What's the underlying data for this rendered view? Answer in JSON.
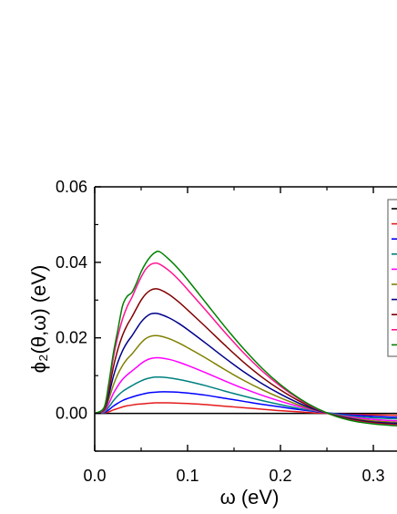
{
  "chart_data": {
    "type": "line",
    "title": "",
    "xlabel": "ω (eV)",
    "ylabel": "ϕ₂(θ,ω) (eV)",
    "xlim": [
      0.0,
      0.3333
    ],
    "ylim": [
      -0.01,
      0.06
    ],
    "xticks": [
      0.0,
      0.1,
      0.2,
      0.3
    ],
    "xtick_labels": [
      "0.0",
      "0.1",
      "0.2",
      "0.3"
    ],
    "yticks": [
      0.0,
      0.02,
      0.04,
      0.06
    ],
    "ytick_labels": [
      "0.00",
      "0.02",
      "0.04",
      "0.06"
    ],
    "grid": false,
    "legend": {
      "placement": "top-right",
      "clipped": true,
      "entry_colors": [
        "#000000",
        "#e41a1c",
        "#0000ff",
        "#008080",
        "#ff00ff",
        "#808000",
        "#00008b",
        "#800000",
        "#ff1493",
        "#008000"
      ]
    },
    "x": [
      0.0,
      0.01,
      0.015,
      0.02,
      0.025,
      0.03,
      0.035,
      0.04,
      0.045,
      0.05,
      0.055,
      0.06,
      0.065,
      0.07,
      0.08,
      0.09,
      0.1,
      0.12,
      0.14,
      0.16,
      0.18,
      0.2,
      0.22,
      0.24,
      0.26,
      0.28,
      0.3,
      0.32,
      0.3333
    ],
    "series": [
      {
        "color": "#000000",
        "values": [
          0,
          0,
          0,
          0,
          0,
          0,
          0,
          0,
          0,
          0,
          0,
          0,
          0,
          0,
          0,
          0,
          0,
          0,
          0,
          0,
          0,
          0,
          0,
          0,
          0,
          0,
          0,
          0,
          0
        ]
      },
      {
        "color": "#e41a1c",
        "values": [
          0,
          0.0001,
          0.0004,
          0.0009,
          0.0013,
          0.0017,
          0.002,
          0.0022,
          0.0024,
          0.0025,
          0.0026,
          0.0027,
          0.0028,
          0.0028,
          0.0028,
          0.0027,
          0.0026,
          0.0023,
          0.0019,
          0.0015,
          0.0011,
          0.0007,
          0.0004,
          0.0001,
          -0.0001,
          -0.0003,
          -0.0004,
          -0.0005,
          -0.0005
        ]
      },
      {
        "color": "#0000ff",
        "values": [
          0,
          0.0002,
          0.0009,
          0.0019,
          0.0027,
          0.0034,
          0.0039,
          0.0043,
          0.0047,
          0.005,
          0.0053,
          0.0055,
          0.0056,
          0.0057,
          0.0057,
          0.0056,
          0.0054,
          0.0048,
          0.004,
          0.0032,
          0.0024,
          0.0017,
          0.001,
          0.0004,
          -0.0001,
          -0.0005,
          -0.0008,
          -0.001,
          -0.001
        ]
      },
      {
        "color": "#008080",
        "values": [
          0,
          0.0003,
          0.0016,
          0.0033,
          0.0047,
          0.0058,
          0.0066,
          0.0073,
          0.008,
          0.0086,
          0.0091,
          0.0094,
          0.0096,
          0.0096,
          0.0094,
          0.009,
          0.0085,
          0.0073,
          0.0059,
          0.0046,
          0.0034,
          0.0023,
          0.0013,
          0.0005,
          -0.0002,
          -0.0008,
          -0.0012,
          -0.0014,
          -0.0015
        ]
      },
      {
        "color": "#ff00ff",
        "values": [
          0,
          0.0005,
          0.0025,
          0.0052,
          0.0073,
          0.009,
          0.0102,
          0.0112,
          0.0122,
          0.0132,
          0.014,
          0.0145,
          0.0147,
          0.0147,
          0.0143,
          0.0136,
          0.0127,
          0.0107,
          0.0086,
          0.0066,
          0.0048,
          0.0032,
          0.0018,
          0.0006,
          -0.0004,
          -0.0011,
          -0.0016,
          -0.0019,
          -0.002
        ]
      },
      {
        "color": "#808000",
        "values": [
          0,
          0.0007,
          0.0036,
          0.0074,
          0.0104,
          0.0127,
          0.0144,
          0.0157,
          0.0172,
          0.0187,
          0.0198,
          0.0204,
          0.0206,
          0.0205,
          0.0198,
          0.0187,
          0.0174,
          0.0146,
          0.0116,
          0.0088,
          0.0063,
          0.0041,
          0.0022,
          0.0007,
          -0.0005,
          -0.0014,
          -0.002,
          -0.0023,
          -0.0024
        ]
      },
      {
        "color": "#00008b",
        "values": [
          0,
          0.0009,
          0.0047,
          0.0097,
          0.0136,
          0.0166,
          0.0188,
          0.0205,
          0.0224,
          0.0242,
          0.0255,
          0.0263,
          0.0265,
          0.0263,
          0.0253,
          0.0239,
          0.0222,
          0.0185,
          0.0147,
          0.0111,
          0.0079,
          0.0051,
          0.0027,
          0.0008,
          -0.0006,
          -0.0016,
          -0.0023,
          -0.0026,
          -0.0027
        ]
      },
      {
        "color": "#800000",
        "values": [
          0,
          0.0011,
          0.0059,
          0.0121,
          0.017,
          0.0207,
          0.0234,
          0.0255,
          0.0278,
          0.03,
          0.0316,
          0.0326,
          0.033,
          0.0328,
          0.0315,
          0.0296,
          0.0274,
          0.0228,
          0.0181,
          0.0136,
          0.0096,
          0.0062,
          0.0033,
          0.001,
          -0.0007,
          -0.0018,
          -0.0025,
          -0.0029,
          -0.003
        ]
      },
      {
        "color": "#ff1493",
        "values": [
          0,
          0.0013,
          0.0071,
          0.0146,
          0.0205,
          0.025,
          0.0283,
          0.0307,
          0.0335,
          0.0361,
          0.0382,
          0.0394,
          0.0398,
          0.0395,
          0.0378,
          0.0355,
          0.0328,
          0.0272,
          0.0215,
          0.0161,
          0.0113,
          0.0072,
          0.0038,
          0.0011,
          -0.0008,
          -0.002,
          -0.0027,
          -0.0031,
          -0.0032
        ]
      },
      {
        "color": "#008000",
        "values": [
          0,
          0.0015,
          0.0077,
          0.0158,
          0.0222,
          0.0285,
          0.031,
          0.032,
          0.0345,
          0.0375,
          0.0398,
          0.0415,
          0.0426,
          0.0428,
          0.0408,
          0.0383,
          0.0354,
          0.0292,
          0.023,
          0.0172,
          0.012,
          0.0076,
          0.004,
          0.0012,
          -0.0008,
          -0.0021,
          -0.0028,
          -0.0032,
          -0.0033
        ]
      }
    ]
  }
}
